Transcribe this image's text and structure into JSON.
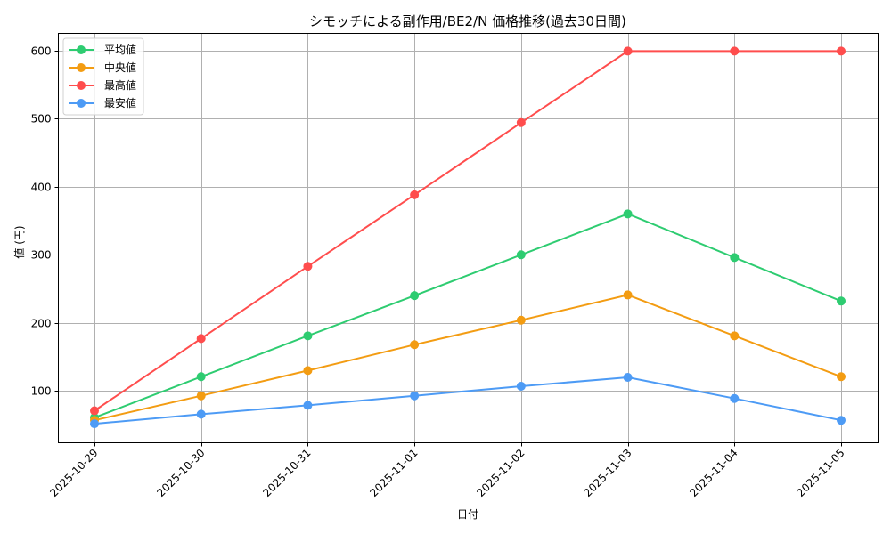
{
  "chart_data": {
    "type": "line",
    "title": "シモッチによる副作用/BE2/N 価格推移(過去30日間)",
    "xlabel": "日付",
    "ylabel": "値 (円)",
    "categories": [
      "2025-10-29",
      "2025-10-30",
      "2025-10-31",
      "2025-11-01",
      "2025-11-02",
      "2025-11-03",
      "2025-11-04",
      "2025-11-05"
    ],
    "series": [
      {
        "name": "平均値",
        "color": "#2ecc71",
        "values": [
          61,
          121,
          181,
          240,
          300,
          360,
          296,
          232
        ]
      },
      {
        "name": "中央値",
        "color": "#f39c12",
        "values": [
          57,
          93,
          130,
          168,
          204,
          241,
          181,
          121
        ]
      },
      {
        "name": "最高値",
        "color": "#ff4d4d",
        "values": [
          71,
          177,
          283,
          388,
          494,
          599,
          599,
          599
        ]
      },
      {
        "name": "最安値",
        "color": "#4d9bf5",
        "values": [
          52,
          66,
          79,
          93,
          107,
          120,
          89,
          57
        ]
      }
    ],
    "yticks": [
      100,
      200,
      300,
      400,
      500,
      600
    ],
    "ylim": [
      24,
      625
    ],
    "grid": true,
    "legend_position": "upper left",
    "x_tick_rotation": 45
  }
}
